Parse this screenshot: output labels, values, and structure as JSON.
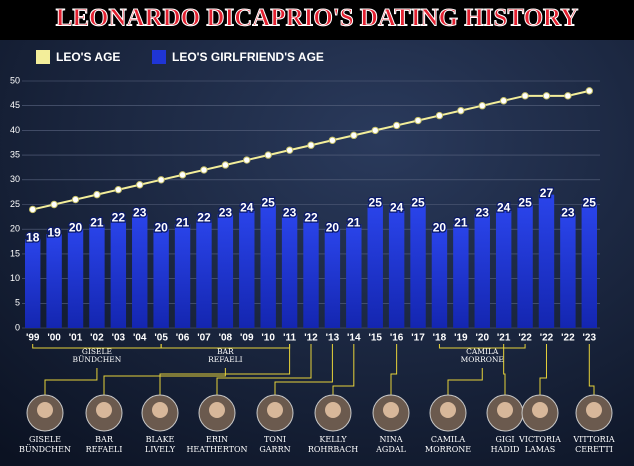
{
  "chart_data": {
    "type": "bar_line",
    "title": "LEONARDO DICAPRIO'S DATING HISTORY",
    "categories": [
      "'99",
      "'00",
      "'01",
      "'02",
      "'03",
      "'04",
      "'05",
      "'06",
      "'07",
      "'08",
      "'09",
      "'10",
      "'11",
      "'12",
      "'13",
      "'14",
      "'15",
      "'16",
      "'17",
      "'18",
      "'19",
      "'20",
      "'21",
      "'22",
      "'22",
      "'22",
      "'23"
    ],
    "series": [
      {
        "name": "LEO'S AGE",
        "color": "#f3ee9a",
        "type": "line",
        "values": [
          24,
          25,
          26,
          27,
          28,
          29,
          30,
          31,
          32,
          33,
          34,
          35,
          36,
          37,
          38,
          39,
          40,
          41,
          42,
          43,
          44,
          45,
          46,
          47,
          47,
          47,
          48
        ]
      },
      {
        "name": "LEO'S GIRLFRIEND'S AGE",
        "color": "#1f35d6",
        "type": "bar",
        "values": [
          18,
          19,
          20,
          21,
          22,
          23,
          20,
          21,
          22,
          23,
          24,
          25,
          23,
          22,
          20,
          21,
          25,
          24,
          25,
          20,
          21,
          23,
          24,
          25,
          27,
          23,
          25
        ]
      }
    ],
    "ylim": [
      0,
      50
    ],
    "yticks": [
      0,
      5,
      10,
      15,
      20,
      25,
      30,
      35,
      40,
      45,
      50
    ],
    "group_labels": [
      [
        "GISELE",
        "BÜNDCHEN"
      ],
      [
        "BAR",
        "REFAELI"
      ],
      [
        "CAMILA",
        "MORRONE"
      ]
    ],
    "girlfriends": [
      [
        "GISELE",
        "BÜNDCHEN"
      ],
      [
        "BAR",
        "REFAELI"
      ],
      [
        "BLAKE",
        "LIVELY"
      ],
      [
        "ERIN",
        "HEATHERTON"
      ],
      [
        "TONI",
        "GARRN"
      ],
      [
        "KELLY",
        "ROHRBACH"
      ],
      [
        "NINA",
        "AGDAL"
      ],
      [
        "CAMILA",
        "MORRONE"
      ],
      [
        "GIGI",
        "HADID"
      ],
      [
        "VICTORIA",
        "LAMAS"
      ],
      [
        "VITTORIA",
        "CERETTI"
      ]
    ]
  }
}
